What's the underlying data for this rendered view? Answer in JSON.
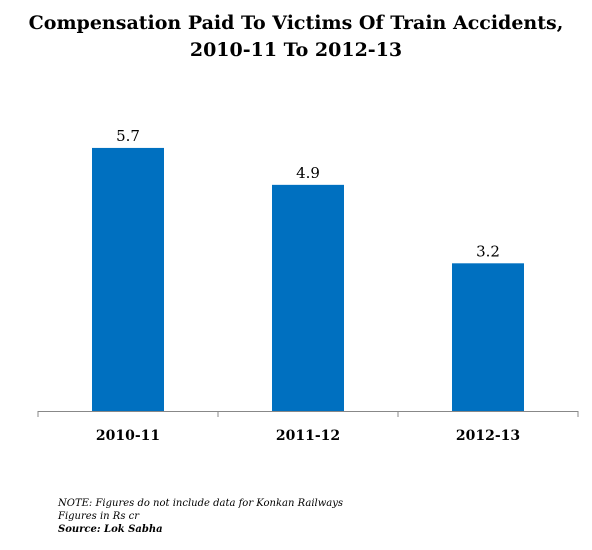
{
  "chart_data": {
    "type": "bar",
    "title_line1": "Compensation Paid To Victims Of Train Accidents,",
    "title_line2": "2010-11 To 2012-13",
    "categories": [
      "2010-11",
      "2011-12",
      "2012-13"
    ],
    "values": [
      5.7,
      4.9,
      3.2
    ],
    "data_labels": [
      "5.7",
      "4.9",
      "3.2"
    ],
    "bar_color": "#0070C0",
    "ylim": [
      0,
      6.5
    ],
    "grid": false,
    "legend": "none"
  },
  "notes": {
    "line1": "NOTE: Figures do not include data for Konkan Railways",
    "line2": "Figures in Rs cr",
    "source": "Source: Lok Sabha"
  }
}
